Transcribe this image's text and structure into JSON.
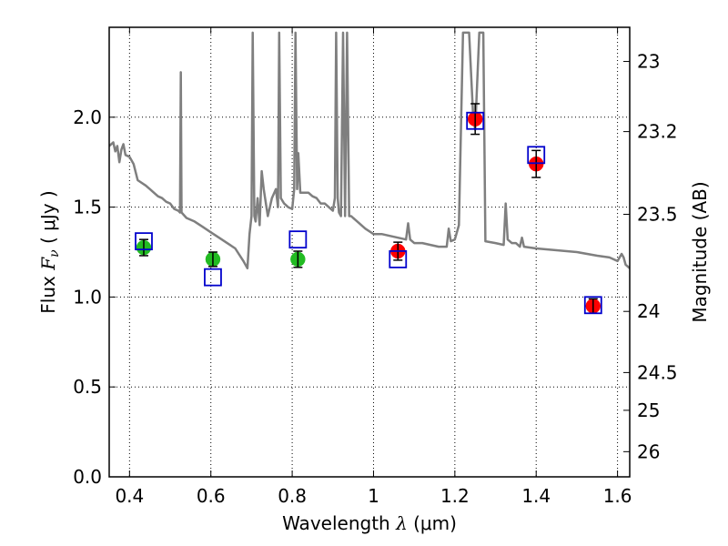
{
  "chart_data": {
    "type": "scatter",
    "xlabel": {
      "prefix": "Wavelength  ",
      "symbol": "λ",
      "unit": " (μm)"
    },
    "ylabel": {
      "prefix": "Flux  ",
      "symbol": "F",
      "sub": "ν",
      "unit": "  ( μJy )"
    },
    "y2label": "Magnitude (AB)",
    "xlim": [
      0.35,
      1.63
    ],
    "ylim": [
      0.0,
      2.5
    ],
    "grid": true,
    "x_ticks": [
      0.4,
      0.6,
      0.8,
      1.0,
      1.2,
      1.4,
      1.6
    ],
    "x_tick_labels": [
      "0.4",
      "0.6",
      "0.8",
      "1",
      "1.2",
      "1.4",
      "1.6"
    ],
    "y_ticks": [
      0.0,
      0.5,
      1.0,
      1.5,
      2.0
    ],
    "y_tick_labels": [
      "0.0",
      "0.5",
      "1.0",
      "1.5",
      "2.0"
    ],
    "y2_ticks": [
      {
        "label": "23",
        "flux": 2.31
      },
      {
        "label": "23.2",
        "flux": 1.92
      },
      {
        "label": "23.5",
        "flux": 1.46
      },
      {
        "label": "24",
        "flux": 0.92
      },
      {
        "label": "24.5",
        "flux": 0.58
      },
      {
        "label": "25",
        "flux": 0.37
      },
      {
        "label": "26",
        "flux": 0.14
      }
    ],
    "series": [
      {
        "marker": "circle",
        "color": "#22bb22",
        "points": [
          {
            "x": 0.435,
            "y": 1.275,
            "err": 0.045
          },
          {
            "x": 0.605,
            "y": 1.21,
            "err": 0.04
          },
          {
            "x": 0.814,
            "y": 1.21,
            "err": 0.045
          }
        ]
      },
      {
        "marker": "circle",
        "color": "#ff0000",
        "points": [
          {
            "x": 1.06,
            "y": 1.255,
            "err": 0.05
          },
          {
            "x": 1.25,
            "y": 1.99,
            "err": 0.085
          },
          {
            "x": 1.4,
            "y": 1.74,
            "err": 0.075
          },
          {
            "x": 1.54,
            "y": 0.95,
            "err": 0.04
          }
        ]
      },
      {
        "marker": "square",
        "color": "#0000cc",
        "points": [
          {
            "x": 0.435,
            "y": 1.31
          },
          {
            "x": 0.605,
            "y": 1.11
          },
          {
            "x": 0.814,
            "y": 1.32
          },
          {
            "x": 1.06,
            "y": 1.21
          },
          {
            "x": 1.25,
            "y": 1.98
          },
          {
            "x": 1.4,
            "y": 1.79
          },
          {
            "x": 1.54,
            "y": 0.955
          }
        ]
      }
    ],
    "spectrum": {
      "color": "#7f7f7f",
      "points": [
        [
          0.35,
          1.84
        ],
        [
          0.36,
          1.86
        ],
        [
          0.365,
          1.81
        ],
        [
          0.37,
          1.84
        ],
        [
          0.375,
          1.75
        ],
        [
          0.38,
          1.82
        ],
        [
          0.385,
          1.85
        ],
        [
          0.39,
          1.79
        ],
        [
          0.4,
          1.78
        ],
        [
          0.41,
          1.74
        ],
        [
          0.42,
          1.65
        ],
        [
          0.44,
          1.62
        ],
        [
          0.45,
          1.6
        ],
        [
          0.46,
          1.58
        ],
        [
          0.47,
          1.56
        ],
        [
          0.48,
          1.55
        ],
        [
          0.49,
          1.53
        ],
        [
          0.5,
          1.52
        ],
        [
          0.51,
          1.49
        ],
        [
          0.52,
          1.48
        ],
        [
          0.524,
          1.47
        ],
        [
          0.526,
          2.25
        ],
        [
          0.528,
          1.47
        ],
        [
          0.54,
          1.44
        ],
        [
          0.56,
          1.42
        ],
        [
          0.58,
          1.39
        ],
        [
          0.6,
          1.36
        ],
        [
          0.62,
          1.33
        ],
        [
          0.64,
          1.3
        ],
        [
          0.66,
          1.27
        ],
        [
          0.68,
          1.2
        ],
        [
          0.69,
          1.16
        ],
        [
          0.695,
          1.35
        ],
        [
          0.7,
          1.45
        ],
        [
          0.703,
          2.47
        ],
        [
          0.707,
          1.45
        ],
        [
          0.71,
          1.42
        ],
        [
          0.715,
          1.55
        ],
        [
          0.72,
          1.4
        ],
        [
          0.725,
          1.7
        ],
        [
          0.73,
          1.6
        ],
        [
          0.74,
          1.45
        ],
        [
          0.75,
          1.55
        ],
        [
          0.76,
          1.6
        ],
        [
          0.765,
          1.5
        ],
        [
          0.768,
          2.47
        ],
        [
          0.772,
          1.55
        ],
        [
          0.78,
          1.52
        ],
        [
          0.79,
          1.5
        ],
        [
          0.8,
          1.49
        ],
        [
          0.805,
          1.6
        ],
        [
          0.808,
          2.47
        ],
        [
          0.812,
          1.6
        ],
        [
          0.815,
          1.8
        ],
        [
          0.82,
          1.58
        ],
        [
          0.83,
          1.58
        ],
        [
          0.84,
          1.58
        ],
        [
          0.85,
          1.56
        ],
        [
          0.86,
          1.55
        ],
        [
          0.87,
          1.52
        ],
        [
          0.88,
          1.52
        ],
        [
          0.89,
          1.5
        ],
        [
          0.9,
          1.48
        ],
        [
          0.905,
          1.55
        ],
        [
          0.908,
          2.47
        ],
        [
          0.912,
          1.55
        ],
        [
          0.915,
          1.47
        ],
        [
          0.92,
          1.45
        ],
        [
          0.925,
          2.47
        ],
        [
          0.93,
          1.45
        ],
        [
          0.935,
          2.47
        ],
        [
          0.94,
          1.45
        ],
        [
          0.945,
          1.45
        ],
        [
          0.95,
          1.44
        ],
        [
          0.96,
          1.42
        ],
        [
          0.98,
          1.38
        ],
        [
          1.0,
          1.35
        ],
        [
          1.02,
          1.35
        ],
        [
          1.04,
          1.34
        ],
        [
          1.06,
          1.33
        ],
        [
          1.08,
          1.32
        ],
        [
          1.085,
          1.41
        ],
        [
          1.09,
          1.32
        ],
        [
          1.1,
          1.3
        ],
        [
          1.12,
          1.3
        ],
        [
          1.14,
          1.29
        ],
        [
          1.16,
          1.28
        ],
        [
          1.18,
          1.28
        ],
        [
          1.185,
          1.38
        ],
        [
          1.19,
          1.31
        ],
        [
          1.2,
          1.32
        ],
        [
          1.21,
          1.4
        ],
        [
          1.22,
          2.47
        ],
        [
          1.235,
          2.47
        ],
        [
          1.245,
          2.0
        ],
        [
          1.25,
          1.93
        ],
        [
          1.26,
          2.47
        ],
        [
          1.27,
          2.47
        ],
        [
          1.275,
          1.31
        ],
        [
          1.3,
          1.3
        ],
        [
          1.32,
          1.29
        ],
        [
          1.325,
          1.52
        ],
        [
          1.33,
          1.32
        ],
        [
          1.34,
          1.3
        ],
        [
          1.35,
          1.3
        ],
        [
          1.36,
          1.28
        ],
        [
          1.365,
          1.33
        ],
        [
          1.37,
          1.28
        ],
        [
          1.4,
          1.27
        ],
        [
          1.45,
          1.26
        ],
        [
          1.5,
          1.25
        ],
        [
          1.55,
          1.23
        ],
        [
          1.58,
          1.22
        ],
        [
          1.6,
          1.2
        ],
        [
          1.61,
          1.24
        ],
        [
          1.615,
          1.22
        ],
        [
          1.62,
          1.18
        ],
        [
          1.63,
          1.16
        ]
      ]
    }
  }
}
